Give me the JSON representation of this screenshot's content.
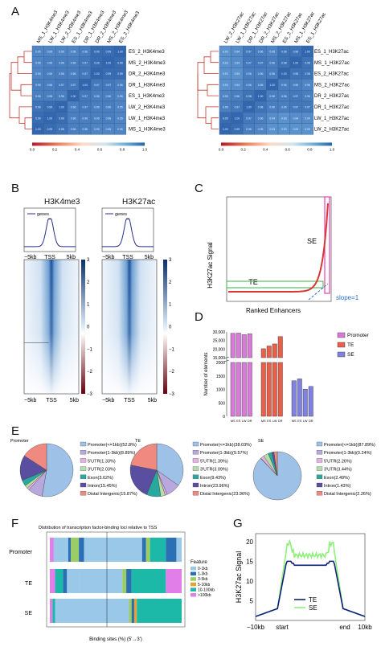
{
  "panels": {
    "a": "A",
    "b": "B",
    "c": "C",
    "d": "D",
    "e": "E",
    "f": "F",
    "g": "G"
  },
  "panel_a": {
    "left": {
      "columns": [
        "MS_1_H3K4me3",
        "LW_1_H3K4me3",
        "LW_2_H3K4me3",
        "ES_1_H3K4me3",
        "DR_1_H3K4me3",
        "DR_2_H3K4me3",
        "MS_2_H3K4me3",
        "ES_2_H3K4me3"
      ],
      "rows": [
        "ES_2_H3K4me3",
        "MS_2_H3K4me3",
        "DR_2_H3K4me3",
        "DR_1_H3K4me3",
        "ES_1_H3K4me3",
        "LW_2_H3K4me3",
        "LW_1_H3K4me3",
        "MS_1_H3K4me3"
      ],
      "values": [
        [
          "0.95",
          "0.95",
          "0.95",
          "0.95",
          "0.96",
          "0.99",
          "0.99",
          "1.00"
        ],
        [
          "0.95",
          "0.96",
          "0.96",
          "0.96",
          "0.97",
          "0.99",
          "1.00",
          "0.99"
        ],
        [
          "0.95",
          "0.96",
          "0.96",
          "0.96",
          "0.97",
          "1.00",
          "0.99",
          "0.99"
        ],
        [
          "0.96",
          "0.96",
          "0.97",
          "0.97",
          "1.00",
          "0.97",
          "0.97",
          "0.96"
        ],
        [
          "0.96",
          "0.96",
          "0.96",
          "1.00",
          "0.97",
          "0.96",
          "0.96",
          "0.95"
        ],
        [
          "0.98",
          "0.99",
          "1.00",
          "0.96",
          "0.97",
          "0.96",
          "0.96",
          "0.95"
        ],
        [
          "0.99",
          "1.00",
          "0.99",
          "0.96",
          "0.96",
          "0.96",
          "0.96",
          "0.95"
        ],
        [
          "1.00",
          "0.99",
          "0.98",
          "0.96",
          "0.96",
          "0.95",
          "0.95",
          "0.95"
        ]
      ],
      "colorbar_ticks": [
        "0.0",
        "0.2",
        "0.4",
        "0.6",
        "0.8",
        "1.0"
      ]
    },
    "right": {
      "columns": [
        "LW_2_H3K27ac",
        "LW_1_H3K27ac",
        "DR_1_H3K27ac",
        "DR_2_H3K27ac",
        "MS_2_H3K27ac",
        "ES_2_H3K27ac",
        "MS_1_H3K27ac",
        "ES_1_H3K27ac"
      ],
      "rows": [
        "ES_1_H3K27ac",
        "MS_1_H3K27ac",
        "ES_2_H3K27ac",
        "MS_2_H3K27ac",
        "DR_2_H3K27ac",
        "DR_1_H3K27ac",
        "LW_1_H3K27ac",
        "LW_2_H3K27ac"
      ],
      "values": [
        [
          "0.93",
          "0.94",
          "0.97",
          "0.96",
          "0.95",
          "0.98",
          "0.98",
          "1.00"
        ],
        [
          "0.93",
          "0.94",
          "0.97",
          "0.97",
          "0.96",
          "0.98",
          "1.00",
          "0.98"
        ],
        [
          "0.93",
          "0.93",
          "0.96",
          "0.96",
          "0.96",
          "1.00",
          "0.98",
          "0.98"
        ],
        [
          "0.93",
          "0.94",
          "0.96",
          "0.96",
          "1.00",
          "0.96",
          "0.96",
          "0.95"
        ],
        [
          "0.95",
          "0.96",
          "0.98",
          "1.00",
          "0.96",
          "0.96",
          "0.97",
          "0.96"
        ],
        [
          "0.96",
          "0.97",
          "1.00",
          "0.98",
          "0.96",
          "0.96",
          "0.97",
          "0.97"
        ],
        [
          "0.99",
          "1.00",
          "0.97",
          "0.96",
          "0.94",
          "0.93",
          "0.94",
          "0.94"
        ],
        [
          "1.00",
          "0.99",
          "0.96",
          "0.95",
          "0.93",
          "0.93",
          "0.93",
          "0.93"
        ]
      ],
      "colorbar_ticks": [
        "0.0",
        "0.2",
        "0.4",
        "0.6",
        "0.8",
        "1.0"
      ]
    }
  },
  "panel_b": {
    "left_title": "H3K4me3",
    "right_title": "H3K27ac",
    "legend": "genes",
    "x_ticks": [
      "−5kb",
      "TSS",
      "5kb"
    ],
    "colorbar_ticks": [
      "3",
      "2",
      "1",
      "0",
      "−1",
      "−2",
      "−3"
    ]
  },
  "panel_c": {
    "ylabel": "H3K27ac Signal",
    "xlabel": "Ranked Enhancers",
    "se_label": "SE",
    "te_label": "TE",
    "slope_label": "slope=1"
  },
  "panel_d": {
    "ylabel": "Number of elements",
    "y_ticks": [
      "30,000",
      "25,000",
      "20,000",
      "15,000",
      "2000",
      "1500",
      "1000",
      "500",
      "0"
    ],
    "groups": [
      {
        "name": "Promoter",
        "color": "#d87bd8",
        "values": [
          29200,
          29300,
          28400,
          28900
        ],
        "cats": [
          "MS",
          "ES",
          "LW",
          "DR"
        ]
      },
      {
        "name": "TE",
        "color": "#e8604a",
        "values": [
          20200,
          21800,
          23000,
          27300
        ],
        "cats": [
          "MS",
          "ES",
          "LW",
          "DR"
        ]
      },
      {
        "name": "SE",
        "color": "#7f82e0",
        "values": [
          1320,
          1390,
          1010,
          1110
        ],
        "cats": [
          "MS",
          "ES",
          "LW",
          "DR"
        ]
      }
    ]
  },
  "panel_e": {
    "pies": [
      {
        "title": "Promoter",
        "legend": [
          "Promoter(<=1kb)(52.8%)",
          "Promoter(1-3kb)(8.89%)",
          "5'UTR(1.33%)",
          "3'UTR(2.03%)",
          "Exon(3.62%)",
          "Intron(15.45%)",
          "Distal Intergenic(15.87%)"
        ],
        "values": [
          52.8,
          8.89,
          1.33,
          2.03,
          3.62,
          15.45,
          15.87
        ]
      },
      {
        "title": "TE",
        "legend": [
          "Promoter(<=1kb)(38.03%)",
          "Promoter(1-3kb)(9.57%)",
          "5'UTR(1.39%)",
          "3'UTR(3.09%)",
          "Exon(9.43%)",
          "Intron(23.96%)",
          "Distal Intergenic(23.96%)"
        ],
        "values": [
          38.03,
          9.57,
          1.39,
          3.09,
          9.43,
          23.96,
          23.96
        ]
      },
      {
        "title": "SE",
        "legend": [
          "Promoter(<=1kb)(87.89%)",
          "Promoter(1-3kb)(0.24%)",
          "5'UTR(2.26%)",
          "3'UTR(3.44%)",
          "Exon(2.49%)",
          "Intron(1.43%)",
          "Distal Intergenic(2.26%)"
        ],
        "values": [
          87.89,
          0.24,
          2.26,
          3.44,
          2.49,
          1.43,
          2.26
        ]
      }
    ],
    "colors": [
      "#9ec1e8",
      "#b8a8de",
      "#e6b0e0",
      "#b6dca8",
      "#27a9a0",
      "#5a4ea0",
      "#f08a80"
    ]
  },
  "panel_f": {
    "title": "Distribution of transcription factor-binding loci relative to TSS",
    "rows": [
      "Promoter",
      "TE",
      "SE"
    ],
    "xlabel": "Binding sites (%) (5'→3')",
    "feature_title": "Feature",
    "features": [
      "0-1kb",
      "1-3kb",
      "3-5kb",
      "5-10kb",
      "10-100kb",
      ">100kb"
    ],
    "feature_colors": [
      "#9ac8e8",
      "#2b6fb4",
      "#9ccc64",
      "#e8a030",
      "#1cb8a8",
      "#e27ee8"
    ]
  },
  "panel_g": {
    "ylabel": "H3K27ac Signal",
    "y_ticks": [
      "20",
      "15",
      "10",
      "5"
    ],
    "x_ticks": [
      "−10kb",
      "start",
      "end",
      "10kb"
    ],
    "legend": [
      {
        "name": "TE",
        "color": "#0c1f7a"
      },
      {
        "name": "SE",
        "color": "#8ef07a"
      }
    ]
  }
}
